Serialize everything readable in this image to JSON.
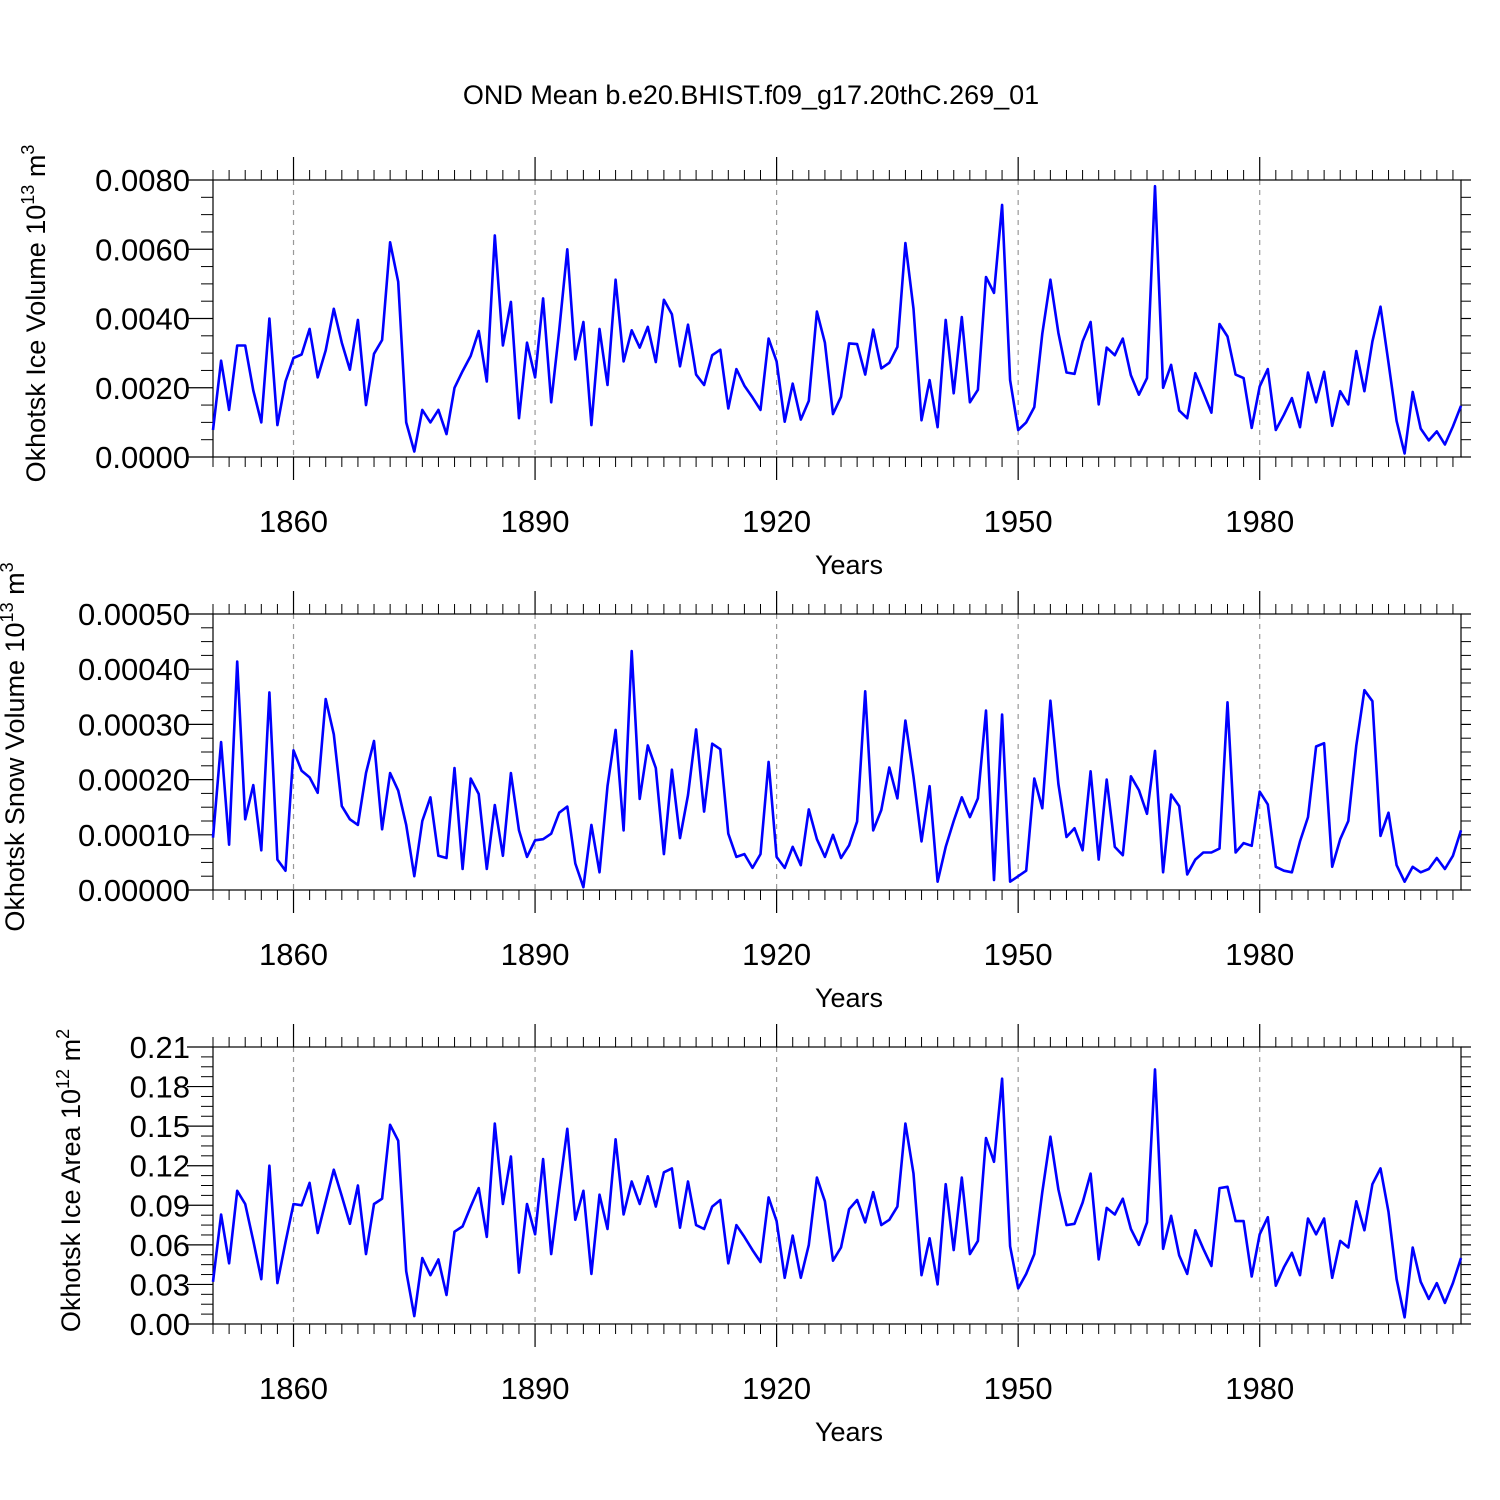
{
  "figure": {
    "title": "OND Mean b.e20.BHIST.f09_g17.20thC.269_01",
    "line_color": "#0000ff"
  },
  "chart_data": [
    {
      "type": "line",
      "ylabel": "Okhotsk Ice Volume 10",
      "ylabel_exp": "13",
      "ylabel_unit": "m",
      "ylabel_unit_exp": "3",
      "xlabel": "Years",
      "xlim": [
        1850,
        2005
      ],
      "ylim": [
        0,
        0.008
      ],
      "yticks": [
        0,
        0.002,
        0.004,
        0.006,
        0.008
      ],
      "ytick_labels": [
        "0.0000",
        "0.0020",
        "0.0040",
        "0.0060",
        "0.0080"
      ],
      "xticks": [
        1860,
        1890,
        1920,
        1950,
        1980
      ],
      "xtick_labels": [
        "1860",
        "1890",
        "1920",
        "1950",
        "1980"
      ],
      "grid": "vertical dashed at major x ticks",
      "x_start": 1850,
      "values": [
        0.00078,
        0.00278,
        0.00136,
        0.00322,
        0.00322,
        0.00192,
        0.001,
        0.004,
        0.00092,
        0.00218,
        0.00286,
        0.00296,
        0.0037,
        0.0023,
        0.00308,
        0.00428,
        0.0033,
        0.00252,
        0.00396,
        0.0015,
        0.00298,
        0.00338,
        0.0062,
        0.00506,
        0.001,
        0.00016,
        0.00136,
        0.001,
        0.00136,
        0.00066,
        0.002,
        0.00248,
        0.00292,
        0.00364,
        0.00218,
        0.0064,
        0.00322,
        0.00448,
        0.00112,
        0.0033,
        0.0023,
        0.00458,
        0.00158,
        0.00366,
        0.006,
        0.00282,
        0.0039,
        0.00092,
        0.0037,
        0.00208,
        0.00512,
        0.00276,
        0.00366,
        0.00316,
        0.00376,
        0.00274,
        0.00454,
        0.00412,
        0.00262,
        0.00382,
        0.00238,
        0.00208,
        0.00294,
        0.0031,
        0.0014,
        0.00254,
        0.00206,
        0.00172,
        0.00136,
        0.00342,
        0.00276,
        0.00102,
        0.00212,
        0.00108,
        0.00162,
        0.0042,
        0.0033,
        0.00124,
        0.00174,
        0.00328,
        0.00326,
        0.00238,
        0.00368,
        0.00256,
        0.00272,
        0.00318,
        0.00618,
        0.00428,
        0.00106,
        0.00222,
        0.00086,
        0.00396,
        0.00184,
        0.00404,
        0.00158,
        0.00194,
        0.0052,
        0.00474,
        0.00728,
        0.00222,
        0.00078,
        0.001,
        0.00144,
        0.00356,
        0.00512,
        0.00358,
        0.00244,
        0.0024,
        0.00334,
        0.0039,
        0.00152,
        0.00316,
        0.00294,
        0.00342,
        0.00236,
        0.0018,
        0.00228,
        0.00782,
        0.002,
        0.00266,
        0.00134,
        0.00112,
        0.00242,
        0.00186,
        0.00128,
        0.00384,
        0.00348,
        0.00238,
        0.00228,
        0.00084,
        0.00204,
        0.00254,
        0.00078,
        0.00122,
        0.0017,
        0.00086,
        0.00244,
        0.00158,
        0.00246,
        0.0009,
        0.0019,
        0.00152,
        0.00306,
        0.0019,
        0.00334,
        0.00434,
        0.00272,
        0.00104,
        0.0001,
        0.00188,
        0.00082,
        0.00048,
        0.00074,
        0.00036,
        0.00088,
        0.00148
      ]
    },
    {
      "type": "line",
      "ylabel": "Okhotsk Snow Volume 10",
      "ylabel_exp": "13",
      "ylabel_unit": "m",
      "ylabel_unit_exp": "3",
      "xlabel": "Years",
      "xlim": [
        1850,
        2005
      ],
      "ylim": [
        0,
        0.0005
      ],
      "yticks": [
        0,
        0.0001,
        0.0002,
        0.0003,
        0.0004,
        0.0005
      ],
      "ytick_labels": [
        "0.00000",
        "0.00010",
        "0.00020",
        "0.00030",
        "0.00040",
        "0.00050"
      ],
      "xticks": [
        1860,
        1890,
        1920,
        1950,
        1980
      ],
      "xtick_labels": [
        "1860",
        "1890",
        "1920",
        "1950",
        "1980"
      ],
      "grid": "vertical dashed at major x ticks",
      "x_start": 1850,
      "values": [
        9.5e-05,
        0.000268,
        8.2e-05,
        0.000414,
        0.000128,
        0.00019,
        7.2e-05,
        0.000358,
        5.5e-05,
        3.5e-05,
        0.000253,
        0.000216,
        0.000204,
        0.000176,
        0.000346,
        0.000282,
        0.000152,
        0.000128,
        0.000118,
        0.000212,
        0.00027,
        0.00011,
        0.000212,
        0.00018,
        0.000118,
        2.5e-05,
        0.000125,
        0.000168,
        6.2e-05,
        5.8e-05,
        0.000221,
        3.8e-05,
        0.000202,
        0.000174,
        3.8e-05,
        0.000154,
        6.2e-05,
        0.000212,
        0.000108,
        6e-05,
        9e-05,
        9.2e-05,
        0.000102,
        0.00014,
        0.000151,
        4.8e-05,
        5e-06,
        0.000118,
        3.2e-05,
        0.000188,
        0.00029,
        0.000108,
        0.000433,
        0.000165,
        0.000262,
        0.000221,
        6.5e-05,
        0.000218,
        9.4e-05,
        0.000172,
        0.000291,
        0.000142,
        0.000265,
        0.000255,
        0.000102,
        6e-05,
        6.5e-05,
        4e-05,
        6.5e-05,
        0.000232,
        6e-05,
        4e-05,
        7.8e-05,
        4.5e-05,
        0.000146,
        9.2e-05,
        6e-05,
        0.0001,
        5.8e-05,
        8.1e-05,
        0.000124,
        0.00036,
        0.000108,
        0.000145,
        0.000222,
        0.000166,
        0.000307,
        0.000205,
        8.8e-05,
        0.000188,
        1.5e-05,
        7.8e-05,
        0.000125,
        0.000168,
        0.000132,
        0.000166,
        0.000325,
        1.8e-05,
        0.000318,
        1.5e-05,
        2.5e-05,
        3.5e-05,
        0.000202,
        0.000148,
        0.000343,
        0.000192,
        9.6e-05,
        0.000112,
        7.2e-05,
        0.000215,
        5.5e-05,
        0.0002,
        7.8e-05,
        6.3e-05,
        0.000206,
        0.000181,
        0.000138,
        0.000252,
        3.2e-05,
        0.000173,
        0.000152,
        2.8e-05,
        5.5e-05,
        6.8e-05,
        6.8e-05,
        7.5e-05,
        0.00034,
        6.8e-05,
        8.5e-05,
        8e-05,
        0.000178,
        0.000155,
        4.2e-05,
        3.5e-05,
        3.2e-05,
        8.8e-05,
        0.000132,
        0.00026,
        0.000266,
        4.2e-05,
        9.2e-05,
        0.000125,
        0.000262,
        0.000362,
        0.000342,
        9.8e-05,
        0.00014,
        4.5e-05,
        1.5e-05,
        4.2e-05,
        3.2e-05,
        3.8e-05,
        5.8e-05,
        3.8e-05,
        6.2e-05,
        0.000108
      ]
    },
    {
      "type": "line",
      "ylabel": "Okhotsk Ice Area 10",
      "ylabel_exp": "12",
      "ylabel_unit": "m",
      "ylabel_unit_exp": "2",
      "xlabel": "Years",
      "xlim": [
        1850,
        2005
      ],
      "ylim": [
        0,
        0.21
      ],
      "yticks": [
        0,
        0.03,
        0.06,
        0.09,
        0.12,
        0.15,
        0.18,
        0.21
      ],
      "ytick_labels": [
        "0.00",
        "0.03",
        "0.06",
        "0.09",
        "0.12",
        "0.15",
        "0.18",
        "0.21"
      ],
      "xticks": [
        1860,
        1890,
        1920,
        1950,
        1980
      ],
      "xtick_labels": [
        "1860",
        "1890",
        "1920",
        "1950",
        "1980"
      ],
      "grid": "vertical dashed at major x ticks",
      "x_start": 1850,
      "values": [
        0.032,
        0.083,
        0.046,
        0.101,
        0.091,
        0.063,
        0.034,
        0.12,
        0.031,
        0.062,
        0.091,
        0.09,
        0.107,
        0.069,
        0.093,
        0.117,
        0.097,
        0.076,
        0.105,
        0.053,
        0.091,
        0.095,
        0.151,
        0.139,
        0.04,
        0.006,
        0.05,
        0.037,
        0.049,
        0.022,
        0.07,
        0.074,
        0.089,
        0.103,
        0.066,
        0.152,
        0.091,
        0.127,
        0.039,
        0.091,
        0.068,
        0.125,
        0.053,
        0.101,
        0.148,
        0.079,
        0.101,
        0.038,
        0.098,
        0.072,
        0.14,
        0.083,
        0.108,
        0.091,
        0.112,
        0.089,
        0.115,
        0.118,
        0.073,
        0.108,
        0.075,
        0.072,
        0.089,
        0.094,
        0.046,
        0.075,
        0.066,
        0.056,
        0.047,
        0.096,
        0.078,
        0.035,
        0.067,
        0.035,
        0.06,
        0.111,
        0.093,
        0.048,
        0.058,
        0.087,
        0.094,
        0.077,
        0.1,
        0.075,
        0.079,
        0.089,
        0.152,
        0.114,
        0.037,
        0.065,
        0.03,
        0.106,
        0.056,
        0.111,
        0.053,
        0.063,
        0.141,
        0.123,
        0.186,
        0.059,
        0.027,
        0.038,
        0.053,
        0.1,
        0.142,
        0.102,
        0.075,
        0.076,
        0.092,
        0.114,
        0.049,
        0.088,
        0.083,
        0.095,
        0.072,
        0.06,
        0.077,
        0.193,
        0.057,
        0.082,
        0.052,
        0.038,
        0.071,
        0.057,
        0.044,
        0.103,
        0.104,
        0.078,
        0.078,
        0.036,
        0.068,
        0.081,
        0.029,
        0.043,
        0.054,
        0.037,
        0.08,
        0.068,
        0.08,
        0.035,
        0.063,
        0.058,
        0.093,
        0.071,
        0.106,
        0.118,
        0.085,
        0.034,
        0.005,
        0.058,
        0.032,
        0.019,
        0.031,
        0.016,
        0.031,
        0.05
      ]
    }
  ]
}
